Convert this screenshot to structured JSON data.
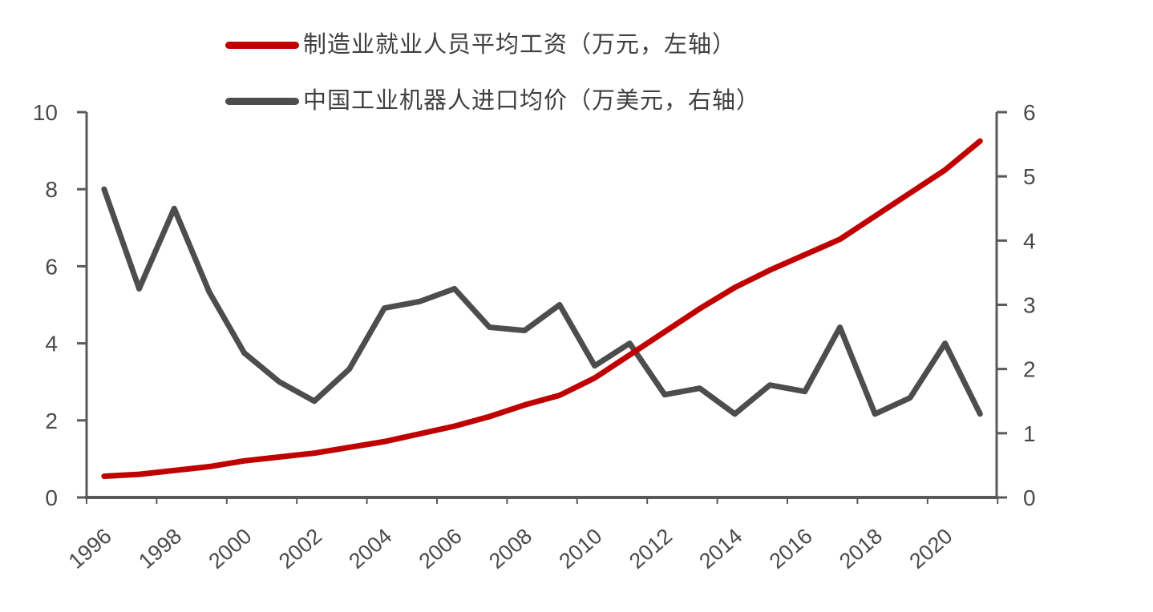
{
  "chart_data": {
    "type": "line",
    "title": "",
    "x": [
      1996,
      1997,
      1998,
      1999,
      2000,
      2001,
      2002,
      2003,
      2004,
      2005,
      2006,
      2007,
      2008,
      2009,
      2010,
      2011,
      2012,
      2013,
      2014,
      2015,
      2016,
      2017,
      2018,
      2019,
      2020,
      2021
    ],
    "x_tick_labels": [
      "1996",
      "1998",
      "2000",
      "2002",
      "2004",
      "2006",
      "2008",
      "2010",
      "2012",
      "2014",
      "2016",
      "2018",
      "2020"
    ],
    "series": [
      {
        "name": "制造业就业人员平均工资（万元，左轴）",
        "axis": "left",
        "color": "#c00000",
        "values": [
          0.55,
          0.6,
          0.7,
          0.8,
          0.95,
          1.05,
          1.15,
          1.3,
          1.45,
          1.65,
          1.85,
          2.1,
          2.4,
          2.65,
          3.1,
          3.7,
          4.3,
          4.9,
          5.45,
          5.9,
          6.3,
          6.7,
          7.3,
          7.9,
          8.5,
          9.25
        ]
      },
      {
        "name": "中国工业机器人进口均价（万美元，右轴）",
        "axis": "right",
        "color": "#4d4d4d",
        "values": [
          4.8,
          3.25,
          4.5,
          3.2,
          2.25,
          1.8,
          1.5,
          2.0,
          2.95,
          3.05,
          3.25,
          2.65,
          2.6,
          3.0,
          2.05,
          2.4,
          1.6,
          1.7,
          1.3,
          1.75,
          1.65,
          2.65,
          1.3,
          1.55,
          2.4,
          1.3
        ]
      }
    ],
    "left_axis": {
      "ticks": [
        0,
        2,
        4,
        6,
        8,
        10
      ],
      "range": [
        0,
        10
      ],
      "unit": "万元"
    },
    "right_axis": {
      "ticks": [
        0,
        1,
        2,
        3,
        4,
        5,
        6
      ],
      "range": [
        0,
        6
      ],
      "unit": "万美元"
    },
    "grid": false,
    "legend_position": "top-left"
  },
  "colors": {
    "axis": "#595959",
    "tick_text": "#4a4a4a",
    "background": "#ffffff"
  }
}
